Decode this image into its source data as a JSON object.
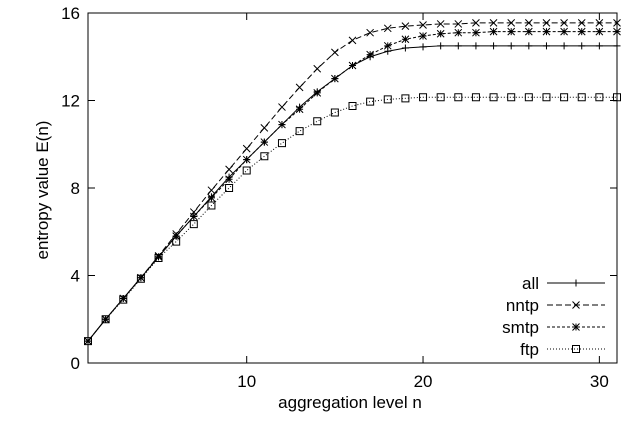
{
  "chart_data": {
    "type": "line",
    "x_label": "aggregation level n",
    "y_label": "entropy value E(n)",
    "x": [
      1,
      2,
      3,
      4,
      5,
      6,
      7,
      8,
      9,
      10,
      11,
      12,
      13,
      14,
      15,
      16,
      17,
      18,
      19,
      20,
      21,
      22,
      23,
      24,
      25,
      26,
      27,
      28,
      29,
      30,
      31
    ],
    "series": [
      {
        "name": "all",
        "color": "#000000",
        "marker": "plus",
        "dash": "solid",
        "values": [
          1,
          2,
          2.95,
          3.9,
          4.85,
          5.8,
          6.7,
          7.6,
          8.5,
          9.3,
          10.1,
          10.9,
          11.7,
          12.4,
          13.0,
          13.6,
          14.0,
          14.25,
          14.4,
          14.45,
          14.5,
          14.5,
          14.5,
          14.5,
          14.5,
          14.5,
          14.5,
          14.5,
          14.5,
          14.5,
          14.5
        ]
      },
      {
        "name": "nntp",
        "color": "#000000",
        "marker": "x",
        "dash": "dashed",
        "values": [
          1,
          2,
          2.95,
          3.9,
          4.9,
          5.9,
          6.9,
          7.9,
          8.85,
          9.8,
          10.75,
          11.7,
          12.6,
          13.45,
          14.2,
          14.75,
          15.1,
          15.3,
          15.4,
          15.45,
          15.5,
          15.5,
          15.55,
          15.55,
          15.55,
          15.55,
          15.55,
          15.55,
          15.55,
          15.55,
          15.55
        ]
      },
      {
        "name": "smtp",
        "color": "#000000",
        "marker": "star",
        "dash": "dashdot",
        "values": [
          1,
          2,
          2.95,
          3.9,
          4.85,
          5.8,
          6.7,
          7.55,
          8.4,
          9.3,
          10.1,
          10.9,
          11.6,
          12.35,
          13.0,
          13.6,
          14.1,
          14.5,
          14.8,
          14.95,
          15.05,
          15.1,
          15.1,
          15.15,
          15.15,
          15.15,
          15.15,
          15.15,
          15.15,
          15.15,
          15.15
        ]
      },
      {
        "name": "ftp",
        "color": "#000000",
        "marker": "square",
        "dash": "dotted",
        "values": [
          1,
          2,
          2.9,
          3.85,
          4.8,
          5.55,
          6.35,
          7.2,
          8.0,
          8.8,
          9.45,
          10.05,
          10.6,
          11.05,
          11.45,
          11.75,
          11.95,
          12.05,
          12.1,
          12.15,
          12.15,
          12.15,
          12.15,
          12.15,
          12.15,
          12.15,
          12.15,
          12.15,
          12.15,
          12.15,
          12.15
        ]
      }
    ],
    "xlim": [
      1,
      31
    ],
    "xticks": [
      10,
      20,
      30
    ],
    "ylim": [
      0,
      16
    ],
    "yticks": [
      0,
      4,
      8,
      12,
      16
    ],
    "grid": false,
    "legend": "lower right"
  }
}
